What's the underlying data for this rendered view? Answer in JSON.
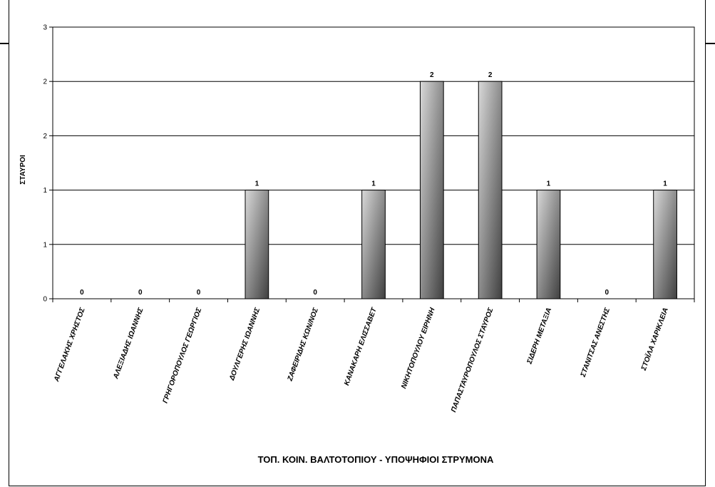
{
  "chart_data": {
    "type": "bar",
    "title": "",
    "xlabel": "ΤΟΠ. ΚΟΙΝ. ΒΑΛΤΟΤΟΠΙΟΥ  - ΥΠΟΨΗΦΙΟΙ ΣΤΡΥΜΟΝΑ",
    "ylabel": "ΣΤΑΥΡΟΙ",
    "categories": [
      "ΑΓΓΕΛΑΚΗΣ ΧΡΗΣΤΟΣ",
      "ΑΛΕΞΙΑΔΗΣ ΙΩΑΝΝΗΣ",
      "ΓΡΗΓΟΡΟΠΟΥΛΟΣ ΓΕΩΡΓΙΟΣ",
      "ΔΟΥΛΓΕΡΗΣ ΙΩΑΝΝΗΣ",
      "ΖΑΦΕΙΡΙΔΗΣ ΚΩΝ/ΝΟΣ",
      "ΚΑΝΑΚΑΡΗ ΕΛΙΣΣΑΒΕΤ",
      "ΝΙΚΗΤΟΠΟΥΛΟΥ ΕΙΡΗΝΗ",
      "ΠΑΠΑΣΤΑΥΡΟΠΟΥΛΟΣ ΣΤΑΥΡΟΣ",
      "ΣΙΔΕΡΗ ΜΕΤΑΞΙΑ",
      "ΣΤΑΝΙΤΣΑΣ ΑΝΕΣΤΗΣ",
      "ΣΤΟΪΛΑ ΧΑΡΙΚΛΕΙΑ"
    ],
    "values": [
      0,
      0,
      0,
      1,
      0,
      1,
      2,
      2,
      1,
      0,
      1
    ],
    "data_labels": [
      "0",
      "0",
      "0",
      "1",
      "0",
      "1",
      "2",
      "2",
      "1",
      "0",
      "1"
    ],
    "ylim": [
      0,
      2.5
    ],
    "y_tick_labels": [
      "0",
      "1",
      "1",
      "2",
      "2",
      "3"
    ],
    "grid": true,
    "legend": "none",
    "colors": {
      "bar_light": "#d9d9d9",
      "bar_dark": "#404040",
      "gridline": "#000000",
      "axis": "#000000"
    }
  }
}
